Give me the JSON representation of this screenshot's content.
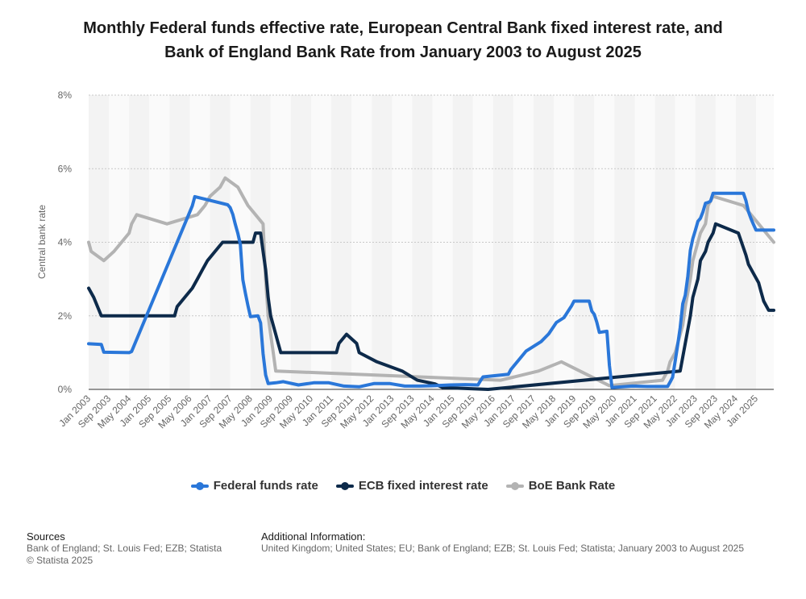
{
  "title_line1": "Monthly Federal funds effective rate, European Central Bank fixed interest rate, and",
  "title_line2": "Bank of England Bank Rate from January 2003 to August 2025",
  "sources_heading": "Sources",
  "sources_text": "Bank of England; St. Louis Fed; EZB; Statista",
  "copyright": "© Statista 2025",
  "additional_heading": "Additional Information:",
  "additional_text": "United Kingdom; United States; EU; Bank of England; EZB; St. Louis Fed; Statista; January 2003 to August 2025",
  "chart_data": {
    "type": "line",
    "title": "Monthly Federal funds effective rate, European Central Bank fixed interest rate, and Bank of England Bank Rate from January 2003 to August 2025",
    "ylabel": "Central bank rate",
    "ylim": [
      0,
      8
    ],
    "y_ticks": [
      0,
      2,
      4,
      6,
      8
    ],
    "y_tick_labels": [
      "0%",
      "2%",
      "4%",
      "6%",
      "8%"
    ],
    "x_start": "Jan 2003",
    "x_end": "Aug 2025",
    "x_tick_labels": [
      "Jan 2003",
      "Sep 2003",
      "May 2004",
      "Jan 2005",
      "Sep 2005",
      "May 2006",
      "Jan 2007",
      "Sep 2007",
      "May 2008",
      "Jan 2009",
      "Sep 2009",
      "May 2010",
      "Jan 2011",
      "Sep 2011",
      "May 2012",
      "Jan 2013",
      "Sep 2013",
      "May 2014",
      "Jan 2015",
      "Sep 2015",
      "May 2016",
      "Jan 2017",
      "Sep 2017",
      "May 2018",
      "Jan 2019",
      "Sep 2019",
      "May 2020",
      "Jan 2021",
      "Sep 2021",
      "May 2022",
      "Jan 2023",
      "Sep 2023",
      "May 2024",
      "Jan 2025"
    ],
    "grid": true,
    "legend_position": "bottom",
    "series": [
      {
        "name": "Federal funds rate",
        "color": "#2a77d9",
        "points": [
          [
            "2003-01",
            1.24
          ],
          [
            "2003-06",
            1.22
          ],
          [
            "2003-07",
            1.01
          ],
          [
            "2004-05",
            1.0
          ],
          [
            "2004-06",
            1.03
          ],
          [
            "2006-06",
            4.99
          ],
          [
            "2006-07",
            5.24
          ],
          [
            "2007-08",
            5.02
          ],
          [
            "2007-09",
            4.94
          ],
          [
            "2007-10",
            4.76
          ],
          [
            "2007-11",
            4.49
          ],
          [
            "2007-12",
            4.24
          ],
          [
            "2008-01",
            3.94
          ],
          [
            "2008-02",
            2.98
          ],
          [
            "2008-03",
            2.61
          ],
          [
            "2008-04",
            2.28
          ],
          [
            "2008-05",
            1.98
          ],
          [
            "2008-08",
            2.0
          ],
          [
            "2008-09",
            1.81
          ],
          [
            "2008-10",
            0.97
          ],
          [
            "2008-11",
            0.39
          ],
          [
            "2008-12",
            0.16
          ],
          [
            "2009-03",
            0.18
          ],
          [
            "2009-06",
            0.21
          ],
          [
            "2009-12",
            0.12
          ],
          [
            "2010-06",
            0.18
          ],
          [
            "2010-12",
            0.18
          ],
          [
            "2011-06",
            0.09
          ],
          [
            "2011-12",
            0.07
          ],
          [
            "2012-06",
            0.16
          ],
          [
            "2012-12",
            0.16
          ],
          [
            "2013-06",
            0.09
          ],
          [
            "2013-12",
            0.09
          ],
          [
            "2014-06",
            0.1
          ],
          [
            "2014-12",
            0.12
          ],
          [
            "2015-06",
            0.13
          ],
          [
            "2015-11",
            0.12
          ],
          [
            "2015-12",
            0.24
          ],
          [
            "2016-01",
            0.34
          ],
          [
            "2016-11",
            0.41
          ],
          [
            "2016-12",
            0.54
          ],
          [
            "2017-03",
            0.79
          ],
          [
            "2017-06",
            1.04
          ],
          [
            "2017-12",
            1.3
          ],
          [
            "2018-03",
            1.51
          ],
          [
            "2018-06",
            1.82
          ],
          [
            "2018-09",
            1.95
          ],
          [
            "2018-12",
            2.27
          ],
          [
            "2019-01",
            2.4
          ],
          [
            "2019-07",
            2.4
          ],
          [
            "2019-08",
            2.13
          ],
          [
            "2019-09",
            2.04
          ],
          [
            "2019-10",
            1.83
          ],
          [
            "2019-11",
            1.55
          ],
          [
            "2020-02",
            1.58
          ],
          [
            "2020-03",
            0.65
          ],
          [
            "2020-04",
            0.05
          ],
          [
            "2020-12",
            0.09
          ],
          [
            "2021-06",
            0.08
          ],
          [
            "2021-12",
            0.08
          ],
          [
            "2022-02",
            0.08
          ],
          [
            "2022-03",
            0.2
          ],
          [
            "2022-04",
            0.33
          ],
          [
            "2022-05",
            0.77
          ],
          [
            "2022-06",
            1.21
          ],
          [
            "2022-07",
            1.68
          ],
          [
            "2022-08",
            2.33
          ],
          [
            "2022-09",
            2.56
          ],
          [
            "2022-10",
            3.08
          ],
          [
            "2022-11",
            3.78
          ],
          [
            "2022-12",
            4.1
          ],
          [
            "2023-01",
            4.33
          ],
          [
            "2023-02",
            4.57
          ],
          [
            "2023-03",
            4.65
          ],
          [
            "2023-04",
            4.83
          ],
          [
            "2023-05",
            5.06
          ],
          [
            "2023-06",
            5.08
          ],
          [
            "2023-07",
            5.12
          ],
          [
            "2023-08",
            5.33
          ],
          [
            "2024-08",
            5.33
          ],
          [
            "2024-09",
            5.13
          ],
          [
            "2024-10",
            4.83
          ],
          [
            "2024-11",
            4.64
          ],
          [
            "2024-12",
            4.48
          ],
          [
            "2025-01",
            4.33
          ],
          [
            "2025-08",
            4.33
          ]
        ]
      },
      {
        "name": "ECB fixed interest rate",
        "color": "#0d2a4a",
        "points": [
          [
            "2003-01",
            2.75
          ],
          [
            "2003-03",
            2.5
          ],
          [
            "2003-06",
            2.0
          ],
          [
            "2005-11",
            2.0
          ],
          [
            "2005-12",
            2.25
          ],
          [
            "2006-03",
            2.5
          ],
          [
            "2006-06",
            2.75
          ],
          [
            "2006-08",
            3.0
          ],
          [
            "2006-10",
            3.25
          ],
          [
            "2006-12",
            3.5
          ],
          [
            "2007-03",
            3.75
          ],
          [
            "2007-06",
            4.0
          ],
          [
            "2008-06",
            4.0
          ],
          [
            "2008-07",
            4.25
          ],
          [
            "2008-09",
            4.25
          ],
          [
            "2008-10",
            3.75
          ],
          [
            "2008-11",
            3.25
          ],
          [
            "2008-12",
            2.5
          ],
          [
            "2009-01",
            2.0
          ],
          [
            "2009-03",
            1.5
          ],
          [
            "2009-04",
            1.25
          ],
          [
            "2009-05",
            1.0
          ],
          [
            "2011-03",
            1.0
          ],
          [
            "2011-04",
            1.25
          ],
          [
            "2011-07",
            1.5
          ],
          [
            "2011-11",
            1.25
          ],
          [
            "2011-12",
            1.0
          ],
          [
            "2012-07",
            0.75
          ],
          [
            "2013-05",
            0.5
          ],
          [
            "2013-11",
            0.25
          ],
          [
            "2014-06",
            0.15
          ],
          [
            "2014-09",
            0.05
          ],
          [
            "2016-03",
            0.0
          ],
          [
            "2022-07",
            0.5
          ],
          [
            "2022-09",
            1.25
          ],
          [
            "2022-11",
            2.0
          ],
          [
            "2022-12",
            2.5
          ],
          [
            "2023-02",
            3.0
          ],
          [
            "2023-03",
            3.5
          ],
          [
            "2023-05",
            3.75
          ],
          [
            "2023-06",
            4.0
          ],
          [
            "2023-08",
            4.25
          ],
          [
            "2023-09",
            4.5
          ],
          [
            "2024-06",
            4.25
          ],
          [
            "2024-09",
            3.65
          ],
          [
            "2024-10",
            3.4
          ],
          [
            "2024-12",
            3.15
          ],
          [
            "2025-02",
            2.9
          ],
          [
            "2025-03",
            2.65
          ],
          [
            "2025-04",
            2.4
          ],
          [
            "2025-06",
            2.15
          ],
          [
            "2025-08",
            2.15
          ]
        ]
      },
      {
        "name": "BoE Bank Rate",
        "color": "#b3b3b3",
        "points": [
          [
            "2003-01",
            4.0
          ],
          [
            "2003-02",
            3.75
          ],
          [
            "2003-07",
            3.5
          ],
          [
            "2003-11",
            3.75
          ],
          [
            "2004-02",
            4.0
          ],
          [
            "2004-05",
            4.25
          ],
          [
            "2004-06",
            4.5
          ],
          [
            "2004-08",
            4.75
          ],
          [
            "2005-08",
            4.5
          ],
          [
            "2006-08",
            4.75
          ],
          [
            "2006-11",
            5.0
          ],
          [
            "2007-01",
            5.25
          ],
          [
            "2007-05",
            5.5
          ],
          [
            "2007-07",
            5.75
          ],
          [
            "2007-12",
            5.5
          ],
          [
            "2008-02",
            5.25
          ],
          [
            "2008-04",
            5.0
          ],
          [
            "2008-10",
            4.5
          ],
          [
            "2008-11",
            3.0
          ],
          [
            "2008-12",
            2.0
          ],
          [
            "2009-01",
            1.5
          ],
          [
            "2009-02",
            1.0
          ],
          [
            "2009-03",
            0.5
          ],
          [
            "2016-08",
            0.25
          ],
          [
            "2017-11",
            0.5
          ],
          [
            "2018-08",
            0.75
          ],
          [
            "2020-03",
            0.1
          ],
          [
            "2021-12",
            0.25
          ],
          [
            "2022-02",
            0.5
          ],
          [
            "2022-03",
            0.75
          ],
          [
            "2022-05",
            1.0
          ],
          [
            "2022-06",
            1.25
          ],
          [
            "2022-08",
            1.75
          ],
          [
            "2022-09",
            2.25
          ],
          [
            "2022-11",
            3.0
          ],
          [
            "2022-12",
            3.5
          ],
          [
            "2023-02",
            4.0
          ],
          [
            "2023-03",
            4.25
          ],
          [
            "2023-05",
            4.5
          ],
          [
            "2023-06",
            5.0
          ],
          [
            "2023-08",
            5.25
          ],
          [
            "2024-08",
            5.0
          ],
          [
            "2024-11",
            4.75
          ],
          [
            "2025-02",
            4.5
          ],
          [
            "2025-05",
            4.25
          ],
          [
            "2025-08",
            4.0
          ]
        ]
      }
    ]
  }
}
